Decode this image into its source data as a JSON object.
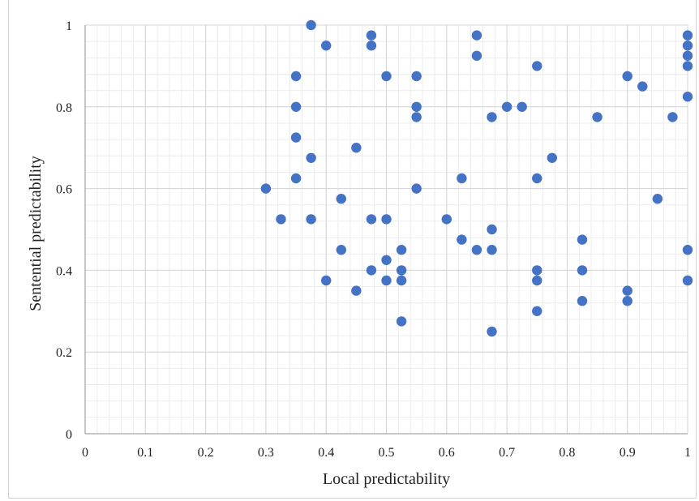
{
  "chart_data": {
    "type": "scatter",
    "title": "",
    "xlabel": "Local predictability",
    "ylabel": "Sentential predictability",
    "xlim": [
      0,
      1
    ],
    "ylim": [
      0,
      1
    ],
    "x_ticks": [
      "0",
      "0.1",
      "0.2",
      "0.3",
      "0.4",
      "0.5",
      "0.6",
      "0.7",
      "0.8",
      "0.9",
      "1"
    ],
    "y_ticks": [
      "0",
      "0.2",
      "0.4",
      "0.6",
      "0.8",
      "1"
    ],
    "grid": true,
    "marker_color": "#4472C4",
    "series": [
      {
        "points": [
          [
            0.375,
            1.0
          ],
          [
            0.4,
            0.95
          ],
          [
            0.475,
            0.975
          ],
          [
            0.475,
            0.95
          ],
          [
            0.65,
            0.975
          ],
          [
            0.65,
            0.925
          ],
          [
            1.0,
            0.975
          ],
          [
            1.0,
            0.95
          ],
          [
            1.0,
            0.925
          ],
          [
            1.0,
            0.9
          ],
          [
            0.75,
            0.9
          ],
          [
            0.35,
            0.875
          ],
          [
            0.5,
            0.875
          ],
          [
            0.55,
            0.875
          ],
          [
            0.9,
            0.875
          ],
          [
            0.925,
            0.85
          ],
          [
            0.35,
            0.8
          ],
          [
            0.55,
            0.8
          ],
          [
            0.7,
            0.8
          ],
          [
            0.725,
            0.8
          ],
          [
            1.0,
            0.825
          ],
          [
            0.55,
            0.775
          ],
          [
            0.675,
            0.775
          ],
          [
            0.85,
            0.775
          ],
          [
            0.975,
            0.775
          ],
          [
            0.35,
            0.725
          ],
          [
            0.45,
            0.7
          ],
          [
            0.375,
            0.675
          ],
          [
            0.775,
            0.675
          ],
          [
            0.35,
            0.625
          ],
          [
            0.625,
            0.625
          ],
          [
            0.75,
            0.625
          ],
          [
            0.3,
            0.6
          ],
          [
            0.55,
            0.6
          ],
          [
            0.425,
            0.575
          ],
          [
            0.95,
            0.575
          ],
          [
            0.325,
            0.525
          ],
          [
            0.375,
            0.525
          ],
          [
            0.475,
            0.525
          ],
          [
            0.5,
            0.525
          ],
          [
            0.6,
            0.525
          ],
          [
            0.675,
            0.5
          ],
          [
            0.625,
            0.475
          ],
          [
            0.825,
            0.475
          ],
          [
            0.425,
            0.45
          ],
          [
            0.525,
            0.45
          ],
          [
            0.65,
            0.45
          ],
          [
            0.675,
            0.45
          ],
          [
            1.0,
            0.45
          ],
          [
            0.5,
            0.425
          ],
          [
            0.475,
            0.4
          ],
          [
            0.525,
            0.4
          ],
          [
            0.75,
            0.4
          ],
          [
            0.825,
            0.4
          ],
          [
            0.4,
            0.375
          ],
          [
            0.5,
            0.375
          ],
          [
            0.525,
            0.375
          ],
          [
            0.75,
            0.375
          ],
          [
            1.0,
            0.375
          ],
          [
            0.45,
            0.35
          ],
          [
            0.9,
            0.35
          ],
          [
            0.825,
            0.325
          ],
          [
            0.9,
            0.325
          ],
          [
            0.75,
            0.3
          ],
          [
            0.525,
            0.275
          ],
          [
            0.675,
            0.25
          ]
        ]
      }
    ]
  }
}
